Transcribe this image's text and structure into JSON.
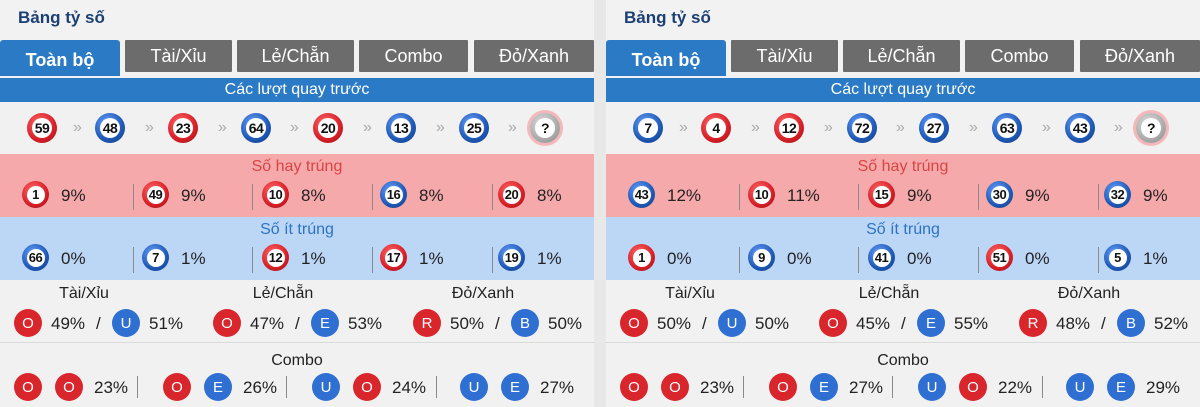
{
  "panels": [
    {
      "title": "Bảng tỷ số",
      "tabs": [
        "Toàn bộ",
        "Tài/Xỉu",
        "Lẻ/Chẵn",
        "Combo",
        "Đỏ/Xanh"
      ],
      "active_tab": 0,
      "recent_header": "Các lượt quay trước",
      "recent": [
        {
          "n": "59",
          "c": "red"
        },
        {
          "n": "48",
          "c": "blue"
        },
        {
          "n": "23",
          "c": "red"
        },
        {
          "n": "64",
          "c": "blue"
        },
        {
          "n": "20",
          "c": "red"
        },
        {
          "n": "13",
          "c": "blue"
        },
        {
          "n": "25",
          "c": "blue"
        },
        {
          "n": "?",
          "c": "q"
        }
      ],
      "hot_header": "Số hay trúng",
      "hot": [
        {
          "n": "1",
          "c": "red",
          "p": "9%"
        },
        {
          "n": "49",
          "c": "red",
          "p": "9%"
        },
        {
          "n": "10",
          "c": "red",
          "p": "8%"
        },
        {
          "n": "16",
          "c": "blue",
          "p": "8%"
        },
        {
          "n": "20",
          "c": "red",
          "p": "8%"
        }
      ],
      "cold_header": "Số ít trúng",
      "cold": [
        {
          "n": "66",
          "c": "blue",
          "p": "0%"
        },
        {
          "n": "7",
          "c": "blue",
          "p": "1%"
        },
        {
          "n": "12",
          "c": "red",
          "p": "1%"
        },
        {
          "n": "17",
          "c": "red",
          "p": "1%"
        },
        {
          "n": "19",
          "c": "blue",
          "p": "1%"
        }
      ],
      "ratio_groups": [
        {
          "label": "Tài/Xỉu",
          "a": {
            "t": "O",
            "c": "red",
            "p": "49%"
          },
          "b": {
            "t": "U",
            "c": "blue",
            "p": "51%"
          }
        },
        {
          "label": "Lẻ/Chẵn",
          "a": {
            "t": "O",
            "c": "red",
            "p": "47%"
          },
          "b": {
            "t": "E",
            "c": "blue",
            "p": "53%"
          }
        },
        {
          "label": "Đỏ/Xanh",
          "a": {
            "t": "R",
            "c": "red",
            "p": "50%"
          },
          "b": {
            "t": "B",
            "c": "blue",
            "p": "50%"
          }
        }
      ],
      "combo_label": "Combo",
      "combos": [
        {
          "a": {
            "t": "O",
            "c": "red"
          },
          "b": {
            "t": "O",
            "c": "red"
          },
          "p": "23%"
        },
        {
          "a": {
            "t": "O",
            "c": "red"
          },
          "b": {
            "t": "E",
            "c": "blue"
          },
          "p": "26%"
        },
        {
          "a": {
            "t": "U",
            "c": "blue"
          },
          "b": {
            "t": "O",
            "c": "red"
          },
          "p": "24%"
        },
        {
          "a": {
            "t": "U",
            "c": "blue"
          },
          "b": {
            "t": "E",
            "c": "blue"
          },
          "p": "27%"
        }
      ]
    },
    {
      "title": "Bảng tỷ số",
      "tabs": [
        "Toàn bộ",
        "Tài/Xỉu",
        "Lẻ/Chẵn",
        "Combo",
        "Đỏ/Xanh"
      ],
      "active_tab": 0,
      "recent_header": "Các lượt quay trước",
      "recent": [
        {
          "n": "7",
          "c": "blue"
        },
        {
          "n": "4",
          "c": "red"
        },
        {
          "n": "12",
          "c": "red"
        },
        {
          "n": "72",
          "c": "blue"
        },
        {
          "n": "27",
          "c": "blue"
        },
        {
          "n": "63",
          "c": "blue"
        },
        {
          "n": "43",
          "c": "blue"
        },
        {
          "n": "?",
          "c": "q"
        }
      ],
      "hot_header": "Số hay trúng",
      "hot": [
        {
          "n": "43",
          "c": "blue",
          "p": "12%"
        },
        {
          "n": "10",
          "c": "red",
          "p": "11%"
        },
        {
          "n": "15",
          "c": "red",
          "p": "9%"
        },
        {
          "n": "30",
          "c": "blue",
          "p": "9%"
        },
        {
          "n": "32",
          "c": "blue",
          "p": "9%"
        }
      ],
      "cold_header": "Số ít trúng",
      "cold": [
        {
          "n": "1",
          "c": "red",
          "p": "0%"
        },
        {
          "n": "9",
          "c": "blue",
          "p": "0%"
        },
        {
          "n": "41",
          "c": "blue",
          "p": "0%"
        },
        {
          "n": "51",
          "c": "red",
          "p": "0%"
        },
        {
          "n": "5",
          "c": "blue",
          "p": "1%"
        }
      ],
      "ratio_groups": [
        {
          "label": "Tài/Xỉu",
          "a": {
            "t": "O",
            "c": "red",
            "p": "50%"
          },
          "b": {
            "t": "U",
            "c": "blue",
            "p": "50%"
          }
        },
        {
          "label": "Lẻ/Chẵn",
          "a": {
            "t": "O",
            "c": "red",
            "p": "45%"
          },
          "b": {
            "t": "E",
            "c": "blue",
            "p": "55%"
          }
        },
        {
          "label": "Đỏ/Xanh",
          "a": {
            "t": "R",
            "c": "red",
            "p": "48%"
          },
          "b": {
            "t": "B",
            "c": "blue",
            "p": "52%"
          }
        }
      ],
      "combo_label": "Combo",
      "combos": [
        {
          "a": {
            "t": "O",
            "c": "red"
          },
          "b": {
            "t": "O",
            "c": "red"
          },
          "p": "23%"
        },
        {
          "a": {
            "t": "O",
            "c": "red"
          },
          "b": {
            "t": "E",
            "c": "blue"
          },
          "p": "27%"
        },
        {
          "a": {
            "t": "U",
            "c": "blue"
          },
          "b": {
            "t": "O",
            "c": "red"
          },
          "p": "22%"
        },
        {
          "a": {
            "t": "U",
            "c": "blue"
          },
          "b": {
            "t": "E",
            "c": "blue"
          },
          "p": "29%"
        }
      ]
    }
  ],
  "colors": {
    "accent": "#2b7ac6",
    "title": "#1c3f74",
    "tab_inactive": "#6c6c6c",
    "hot_bg": "#f5a9aa",
    "cold_bg": "#bcd6f6",
    "red": "#d9262c",
    "blue": "#2f6fd2"
  },
  "icons": {
    "spin_arrow": "double-chevron-right-icon"
  }
}
